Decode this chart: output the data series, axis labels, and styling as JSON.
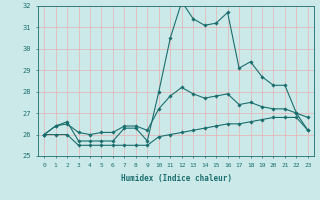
{
  "xlabel": "Humidex (Indice chaleur)",
  "x": [
    0,
    1,
    2,
    3,
    4,
    5,
    6,
    7,
    8,
    9,
    10,
    11,
    12,
    13,
    14,
    15,
    16,
    17,
    18,
    19,
    20,
    21,
    22,
    23
  ],
  "line_max": [
    26.0,
    26.4,
    26.6,
    25.7,
    25.7,
    25.7,
    25.7,
    26.3,
    26.3,
    25.7,
    28.0,
    30.5,
    32.2,
    31.4,
    31.1,
    31.2,
    31.7,
    29.1,
    29.4,
    28.7,
    28.3,
    28.3,
    27.0,
    26.2
  ],
  "line_avg": [
    26.0,
    26.4,
    26.5,
    26.1,
    26.0,
    26.1,
    26.1,
    26.4,
    26.4,
    26.2,
    27.2,
    27.8,
    28.2,
    27.9,
    27.7,
    27.8,
    27.9,
    27.4,
    27.5,
    27.3,
    27.2,
    27.2,
    27.0,
    26.8
  ],
  "line_min": [
    26.0,
    26.0,
    26.0,
    25.5,
    25.5,
    25.5,
    25.5,
    25.5,
    25.5,
    25.5,
    25.9,
    26.0,
    26.1,
    26.2,
    26.3,
    26.4,
    26.5,
    26.5,
    26.6,
    26.7,
    26.8,
    26.8,
    26.8,
    26.2
  ],
  "line_color": "#1a6e6e",
  "bg_color": "#cce9e9",
  "grid_color": "#e8b0b0",
  "ylim": [
    25,
    32
  ],
  "xlim": [
    -0.5,
    23.5
  ],
  "yticks": [
    25,
    26,
    27,
    28,
    29,
    30,
    31,
    32
  ],
  "xticks": [
    0,
    1,
    2,
    3,
    4,
    5,
    6,
    7,
    8,
    9,
    10,
    11,
    12,
    13,
    14,
    15,
    16,
    17,
    18,
    19,
    20,
    21,
    22,
    23
  ]
}
